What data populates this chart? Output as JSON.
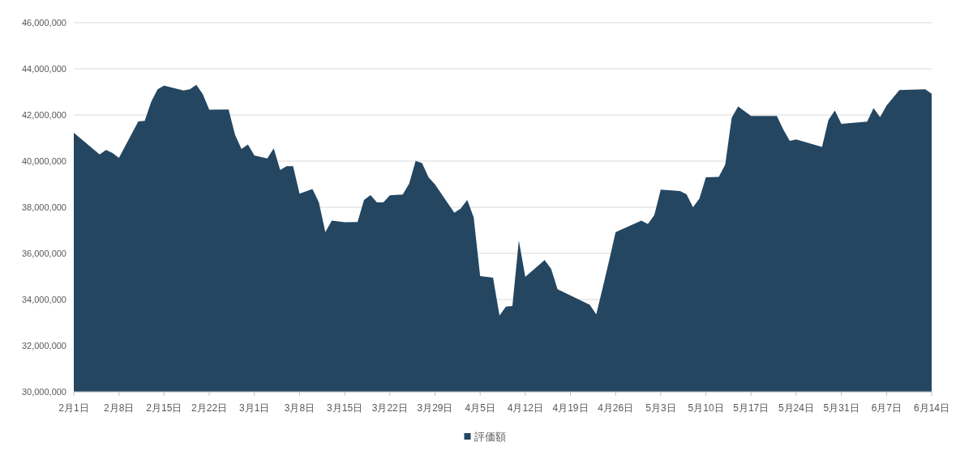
{
  "chart_data": {
    "type": "area",
    "x": [
      "--02-01",
      "--02-05",
      "--02-06",
      "--02-07",
      "--02-08",
      "--02-11",
      "--02-12",
      "--02-13",
      "--02-14",
      "--02-15",
      "--02-18",
      "--02-19",
      "--02-20",
      "--02-21",
      "--02-22",
      "--02-25",
      "--02-26",
      "--02-27",
      "--02-28",
      "--03-01",
      "--03-03",
      "--03-04",
      "--03-05",
      "--03-06",
      "--03-07",
      "--03-08",
      "--03-10",
      "--03-11",
      "--03-12",
      "--03-13",
      "--03-15",
      "--03-17",
      "--03-18",
      "--03-19",
      "--03-20",
      "--03-21",
      "--03-22",
      "--03-24",
      "--03-25",
      "--03-26",
      "--03-27",
      "--03-28",
      "--03-29",
      "--04-01",
      "--04-02",
      "--04-03",
      "--04-04",
      "--04-05",
      "--04-07",
      "--04-08",
      "--04-09",
      "--04-10",
      "--04-11",
      "--04-12",
      "--04-15",
      "--04-16",
      "--04-17",
      "--04-22",
      "--04-23",
      "--04-24",
      "--04-25",
      "--04-26",
      "--04-30",
      "--05-01",
      "--05-02",
      "--05-03",
      "--05-06",
      "--05-07",
      "--05-08",
      "--05-09",
      "--05-10",
      "--05-12",
      "--05-13",
      "--05-14",
      "--05-15",
      "--05-17",
      "--05-21",
      "--05-22",
      "--05-23",
      "--05-24",
      "--05-28",
      "--05-29",
      "--05-30",
      "--05-31",
      "--06-04",
      "--06-05",
      "--06-06",
      "--06-07",
      "--06-09",
      "--06-13",
      "--06-14"
    ],
    "series": [
      {
        "name": "評価額",
        "color": "#244661",
        "values": [
          41230000,
          40290000,
          40480000,
          40350000,
          40140000,
          41720000,
          41750000,
          42570000,
          43110000,
          43270000,
          43060000,
          43110000,
          43310000,
          42900000,
          42230000,
          42240000,
          41140000,
          40530000,
          40720000,
          40250000,
          40110000,
          40550000,
          39610000,
          39780000,
          39780000,
          38590000,
          38790000,
          38210000,
          36920000,
          37420000,
          37350000,
          37360000,
          38320000,
          38530000,
          38210000,
          38210000,
          38520000,
          38550000,
          39030000,
          40010000,
          39910000,
          39300000,
          38990000,
          37760000,
          37950000,
          38320000,
          37560000,
          35020000,
          34950000,
          33310000,
          33690000,
          33720000,
          36560000,
          34980000,
          35710000,
          35330000,
          34450000,
          33770000,
          33360000,
          34510000,
          35690000,
          36920000,
          37420000,
          37270000,
          37660000,
          38760000,
          38700000,
          38560000,
          38000000,
          38380000,
          39300000,
          39320000,
          39850000,
          41880000,
          42370000,
          41960000,
          41960000,
          41370000,
          40880000,
          40940000,
          40610000,
          41780000,
          42190000,
          41610000,
          41710000,
          42300000,
          41900000,
          42400000,
          43080000,
          43110000,
          42920000
        ]
      }
    ],
    "xlim": [
      "--02-01",
      "--06-14"
    ],
    "xticks": [
      {
        "value": "--02-01",
        "label": "2月1日"
      },
      {
        "value": "--02-08",
        "label": "2月8日"
      },
      {
        "value": "--02-15",
        "label": "2月15日"
      },
      {
        "value": "--02-22",
        "label": "2月22日"
      },
      {
        "value": "--03-01",
        "label": "3月1日"
      },
      {
        "value": "--03-08",
        "label": "3月8日"
      },
      {
        "value": "--03-15",
        "label": "3月15日"
      },
      {
        "value": "--03-22",
        "label": "3月22日"
      },
      {
        "value": "--03-29",
        "label": "3月29日"
      },
      {
        "value": "--04-05",
        "label": "4月5日"
      },
      {
        "value": "--04-12",
        "label": "4月12日"
      },
      {
        "value": "--04-19",
        "label": "4月19日"
      },
      {
        "value": "--04-26",
        "label": "4月26日"
      },
      {
        "value": "--05-03",
        "label": "5月3日"
      },
      {
        "value": "--05-10",
        "label": "5月10日"
      },
      {
        "value": "--05-17",
        "label": "5月17日"
      },
      {
        "value": "--05-24",
        "label": "5月24日"
      },
      {
        "value": "--05-31",
        "label": "5月31日"
      },
      {
        "value": "--06-07",
        "label": "6月7日"
      },
      {
        "value": "--06-14",
        "label": "6月14日"
      }
    ],
    "ylim": [
      30000000,
      46000000
    ],
    "yticks": [
      {
        "value": 30000000,
        "label": "30,000,000"
      },
      {
        "value": 32000000,
        "label": "32,000,000"
      },
      {
        "value": 34000000,
        "label": "34,000,000"
      },
      {
        "value": 36000000,
        "label": "36,000,000"
      },
      {
        "value": 38000000,
        "label": "38,000,000"
      },
      {
        "value": 40000000,
        "label": "40,000,000"
      },
      {
        "value": 42000000,
        "label": "42,000,000"
      },
      {
        "value": 44000000,
        "label": "44,000,000"
      },
      {
        "value": 46000000,
        "label": "46,000,000"
      }
    ],
    "grid": "y",
    "legend": "bottom"
  }
}
